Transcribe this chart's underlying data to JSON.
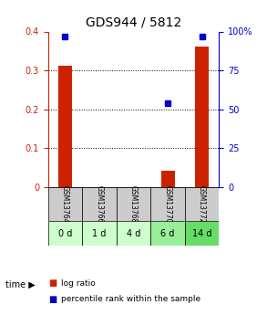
{
  "title": "GDS944 / 5812",
  "samples": [
    "GSM13764",
    "GSM13766",
    "GSM13768",
    "GSM13770",
    "GSM13772"
  ],
  "time_labels": [
    "0 d",
    "1 d",
    "4 d",
    "6 d",
    "14 d"
  ],
  "log_ratios": [
    0.313,
    0.0,
    0.0,
    0.042,
    0.362
  ],
  "percentile_ranks": [
    97.0,
    null,
    null,
    54.0,
    97.0
  ],
  "ylim_left": [
    0,
    0.4
  ],
  "ylim_right": [
    0,
    100
  ],
  "yticks_left": [
    0,
    0.1,
    0.2,
    0.3,
    0.4
  ],
  "yticks_right": [
    0,
    25,
    50,
    75,
    100
  ],
  "ytick_labels_left": [
    "0",
    "0.1",
    "0.2",
    "0.3",
    "0.4"
  ],
  "ytick_labels_right": [
    "0",
    "25",
    "50",
    "75",
    "100%"
  ],
  "grid_values": [
    0.1,
    0.2,
    0.3
  ],
  "bar_color": "#cc2200",
  "dot_color": "#0000cc",
  "bar_width": 0.4,
  "time_row_colors": [
    "#ccffcc",
    "#ccffcc",
    "#ccffcc",
    "#99ee99",
    "#66dd66"
  ],
  "gsm_row_color": "#cccccc",
  "background_color": "#ffffff",
  "legend_log_ratio_color": "#cc2200",
  "legend_percentile_color": "#0000cc"
}
